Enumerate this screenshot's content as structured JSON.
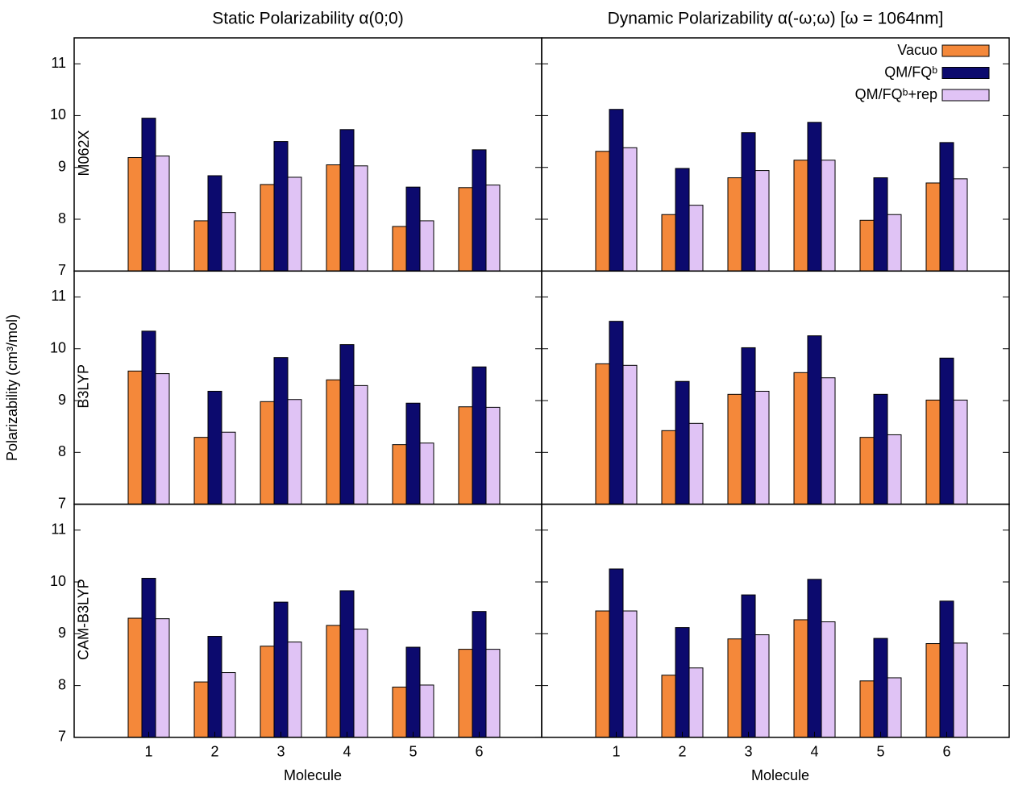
{
  "ylabel": "Polarizability (cm³/mol)",
  "chart_data": [
    {
      "type": "bar",
      "title": "Static Polarizability α(0;0)",
      "row_label": "M062X",
      "ylim": [
        7,
        11.5
      ],
      "yticks": [
        7,
        8,
        9,
        10,
        11
      ],
      "series": [
        {
          "color": "#f4883a",
          "values": [
            9.19,
            7.97,
            8.67,
            9.05,
            7.86,
            8.61
          ]
        },
        {
          "color": "#0c0a6e",
          "values": [
            9.95,
            8.84,
            9.5,
            9.73,
            8.62,
            9.34
          ]
        },
        {
          "color": "#e0c3f5",
          "values": [
            9.22,
            8.13,
            8.81,
            9.03,
            7.97,
            8.66
          ]
        }
      ]
    },
    {
      "type": "bar",
      "title": "Dynamic Polarizability α(-ω;ω) [ω = 1064nm]",
      "ylim": [
        7,
        11.5
      ],
      "legend": "upper right",
      "series": [
        {
          "name": "Vacuo",
          "color": "#f4883a",
          "values": [
            9.31,
            8.09,
            8.8,
            9.14,
            7.98,
            8.7
          ]
        },
        {
          "name": "QM/FQᵇ",
          "color": "#0c0a6e",
          "values": [
            10.12,
            8.98,
            9.67,
            9.87,
            8.8,
            9.48
          ]
        },
        {
          "name": "QM/FQᵇ+rep",
          "color": "#e0c3f5",
          "values": [
            9.38,
            8.27,
            8.94,
            9.14,
            8.09,
            8.78
          ]
        }
      ]
    },
    {
      "type": "bar",
      "row_label": "B3LYP",
      "ylim": [
        7,
        11.5
      ],
      "yticks": [
        7,
        8,
        9,
        10,
        11
      ],
      "series": [
        {
          "color": "#f4883a",
          "values": [
            9.57,
            8.29,
            8.98,
            9.4,
            8.15,
            8.88
          ]
        },
        {
          "color": "#0c0a6e",
          "values": [
            10.34,
            9.18,
            9.83,
            10.08,
            8.95,
            9.65
          ]
        },
        {
          "color": "#e0c3f5",
          "values": [
            9.52,
            8.39,
            9.02,
            9.29,
            8.18,
            8.87
          ]
        }
      ]
    },
    {
      "type": "bar",
      "ylim": [
        7,
        11.5
      ],
      "series": [
        {
          "color": "#f4883a",
          "values": [
            9.71,
            8.42,
            9.12,
            9.54,
            8.29,
            9.01
          ]
        },
        {
          "color": "#0c0a6e",
          "values": [
            10.53,
            9.37,
            10.02,
            10.25,
            9.12,
            9.82
          ]
        },
        {
          "color": "#e0c3f5",
          "values": [
            9.68,
            8.56,
            9.18,
            9.44,
            8.34,
            9.01
          ]
        }
      ]
    },
    {
      "type": "bar",
      "row_label": "CAM-B3LYP",
      "xlabel": "Molecule",
      "categories": [
        "1",
        "2",
        "3",
        "4",
        "5",
        "6"
      ],
      "ylim": [
        7,
        11.5
      ],
      "yticks": [
        7,
        8,
        9,
        10,
        11
      ],
      "series": [
        {
          "color": "#f4883a",
          "values": [
            9.3,
            8.07,
            8.76,
            9.16,
            7.97,
            8.7
          ]
        },
        {
          "color": "#0c0a6e",
          "values": [
            10.07,
            8.95,
            9.61,
            9.83,
            8.74,
            9.43
          ]
        },
        {
          "color": "#e0c3f5",
          "values": [
            9.29,
            8.25,
            8.84,
            9.09,
            8.01,
            8.7
          ]
        }
      ]
    },
    {
      "type": "bar",
      "xlabel": "Molecule",
      "categories": [
        "1",
        "2",
        "3",
        "4",
        "5",
        "6"
      ],
      "ylim": [
        7,
        11.5
      ],
      "series": [
        {
          "color": "#f4883a",
          "values": [
            9.44,
            8.2,
            8.9,
            9.27,
            8.09,
            8.81
          ]
        },
        {
          "color": "#0c0a6e",
          "values": [
            10.25,
            9.12,
            9.75,
            10.05,
            8.91,
            9.63
          ]
        },
        {
          "color": "#e0c3f5",
          "values": [
            9.44,
            8.34,
            8.98,
            9.23,
            8.15,
            8.82
          ]
        }
      ]
    }
  ]
}
